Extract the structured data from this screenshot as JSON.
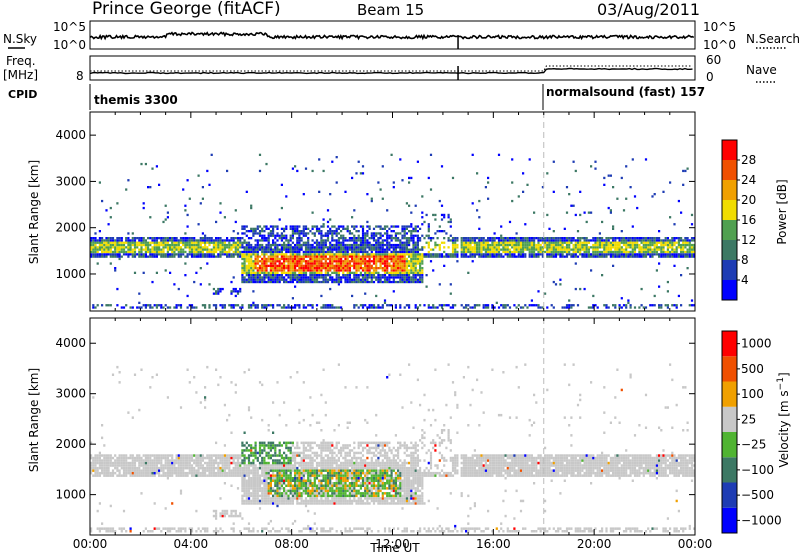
{
  "header": {
    "station": "Prince George (fitACF)",
    "beam": "Beam 15",
    "date": "03/Aug/2011"
  },
  "top_panels": {
    "nsky_label": "N.Sky",
    "nsky_ticks": [
      "10^5",
      "10^0"
    ],
    "nsearch_label": "N.Search",
    "nsearch_ticks": [
      "10^5",
      "10^0"
    ],
    "freq_label": "Freq.",
    "freq_unit": "[MHz]",
    "freq_tick": "8",
    "nave_label": "Nave",
    "nave_ticks": [
      "60",
      "0"
    ],
    "cpid_label": "CPID",
    "cpid_segments": [
      {
        "label": "themis 3300",
        "start_hour": 0.0
      },
      {
        "label": "normalsound (fast) 157",
        "start_hour": 18.0
      }
    ]
  },
  "colors": {
    "power_scale": [
      "#0000ff",
      "#1e3cb4",
      "#3c7864",
      "#50a050",
      "#f0dc00",
      "#f0a000",
      "#f05000",
      "#ff0000"
    ],
    "velocity_scale": [
      "#0000ff",
      "#1e3cb4",
      "#3c7864",
      "#50b432",
      "#c8c8c8",
      "#f0a000",
      "#f05000",
      "#ff0000"
    ]
  },
  "chart_data": [
    {
      "type": "heatmap",
      "title": "",
      "xlabel": "",
      "ylabel": "Slant Range [km]",
      "xlim": [
        0,
        24
      ],
      "ylim": [
        200,
        4500
      ],
      "yticks": [
        "1000",
        "2000",
        "3000",
        "4000"
      ],
      "colorbar_label": "Power [dB]",
      "colorbar_ticks": [
        "4",
        "8",
        "12",
        "16",
        "20",
        "24",
        "28"
      ]
    },
    {
      "type": "heatmap",
      "title": "",
      "xlabel": "Time UT",
      "ylabel": "Slant Range [km]",
      "xlim": [
        0,
        24
      ],
      "ylim": [
        200,
        4500
      ],
      "xticks": [
        "00:00",
        "04:00",
        "08:00",
        "12:00",
        "16:00",
        "20:00",
        "00:00"
      ],
      "yticks": [
        "1000",
        "2000",
        "3000",
        "4000"
      ],
      "colorbar_label": "Velocity [m s^-1]",
      "colorbar_ticks": [
        "1000",
        "500",
        "100",
        "25",
        "−25",
        "−100",
        "−500",
        "−1000"
      ]
    }
  ]
}
